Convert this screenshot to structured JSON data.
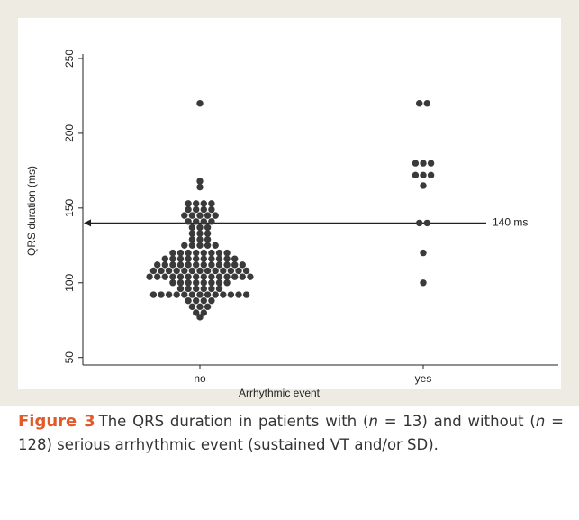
{
  "chart_data": {
    "type": "dot",
    "x_label": "Arrhythmic event",
    "y_label": "QRS duration (ms)",
    "categories": [
      "no",
      "yes"
    ],
    "values": [
      [
        220,
        168,
        164,
        153,
        153,
        153,
        153,
        149,
        149,
        149,
        149,
        145,
        145,
        145,
        145,
        145,
        141,
        141,
        141,
        141,
        137,
        137,
        137,
        133,
        133,
        133,
        129,
        129,
        129,
        125,
        125,
        125,
        125,
        125,
        120,
        120,
        120,
        120,
        120,
        120,
        120,
        120,
        116,
        116,
        116,
        116,
        116,
        116,
        116,
        116,
        116,
        116,
        112,
        112,
        112,
        112,
        112,
        112,
        112,
        112,
        112,
        112,
        112,
        112,
        108,
        108,
        108,
        108,
        108,
        108,
        108,
        108,
        108,
        108,
        108,
        108,
        108,
        104,
        104,
        104,
        104,
        104,
        104,
        104,
        104,
        104,
        104,
        104,
        104,
        104,
        104,
        100,
        100,
        100,
        100,
        100,
        100,
        100,
        100,
        96,
        96,
        96,
        96,
        96,
        96,
        92,
        92,
        92,
        92,
        92,
        92,
        92,
        92,
        92,
        92,
        92,
        92,
        92,
        88,
        88,
        88,
        88,
        84,
        84,
        84,
        80,
        80,
        77
      ],
      [
        220,
        220,
        180,
        180,
        180,
        172,
        172,
        172,
        165,
        140,
        140,
        120,
        100
      ]
    ],
    "color": "#3a3a3a",
    "ylim": [
      45,
      253
    ],
    "yticks": [
      50,
      100,
      150,
      200,
      250
    ],
    "reference_line": {
      "value": 140,
      "label": "140 ms"
    }
  },
  "caption": {
    "label": "Figure 3",
    "parts": [
      "The QRS duration in patients with (",
      "n",
      " = 13) and without (",
      "n",
      " = 128) serious arrhythmic event (sustained VT and/or SD)."
    ]
  }
}
